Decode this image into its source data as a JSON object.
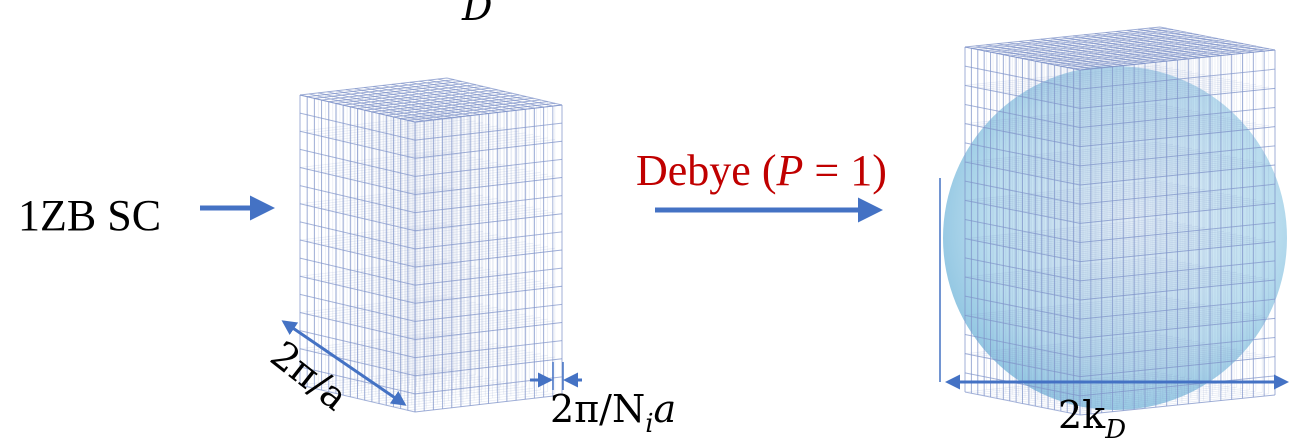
{
  "top_fragment": "D",
  "left_label": "1ZB SC",
  "debye_label": {
    "before": "Debye (",
    "variable": "P",
    "after": " = 1)"
  },
  "cell_label": "2π/a",
  "spacing_label": {
    "before": "2π/N",
    "sub": "i",
    "after": "a"
  },
  "sphere_label": {
    "before": "2k",
    "sub": "D"
  }
}
